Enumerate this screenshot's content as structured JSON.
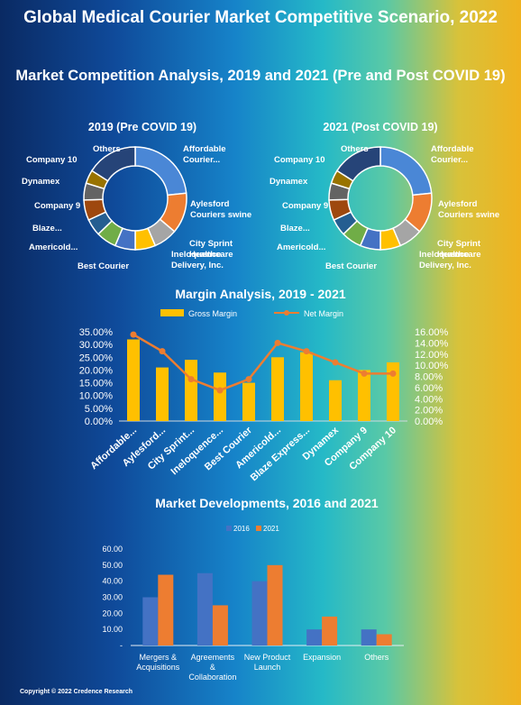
{
  "header": {
    "title": "Global Medical Courier Market Competitive Scenario, 2022",
    "subtitle": "Market Competition Analysis, 2019 and 2021 (Pre and Post COVID 19)"
  },
  "footer": {
    "copyright": "Copyright © 2022 Credence Research"
  },
  "colors": {
    "slice_palette": [
      "#4a87d6",
      "#ed7d31",
      "#a5a5a5",
      "#ffc000",
      "#4472c4",
      "#70ad47",
      "#255e91",
      "#9e480e",
      "#636363",
      "#997300",
      "#264478"
    ],
    "gross_margin": "#ffc000",
    "net_margin": "#ed7d31",
    "dev_2016": "#4472c4",
    "dev_2021": "#ed7d31"
  },
  "chart_data": [
    {
      "type": "pie",
      "variant": "donut",
      "title": "2019 (Pre COVID 19)",
      "labels": [
        "Affordable Courier...",
        "Aylesford Couriers swine",
        "City Sprint Healthcare",
        "Ineloquence Delivery, Inc.",
        "Best Courier",
        "Americold...",
        "Blaze...",
        "Company 9",
        "Dynamex",
        "Company 10",
        "Others"
      ],
      "values": [
        22,
        12,
        7,
        6,
        6,
        6,
        5,
        6,
        5,
        4,
        15
      ]
    },
    {
      "type": "pie",
      "variant": "donut",
      "title": "2021 (Post COVID 19)",
      "labels": [
        "Affordable Courier...",
        "Aylesford Couriers swine",
        "City Sprint Healthcare",
        "Ineloquence Delivery, Inc.",
        "Best Courier",
        "Americold...",
        "Blaze...",
        "Company 9",
        "Dynamex",
        "Company 10",
        "Others"
      ],
      "values": [
        22,
        12,
        7,
        6,
        6,
        6,
        5,
        6,
        5,
        4,
        15
      ]
    },
    {
      "type": "bar",
      "title": "Margin Analysis, 2019 - 2021",
      "legend": "top",
      "categories": [
        "Affordable...",
        "Aylesford...",
        "City Sprint...",
        "Ineloquence...",
        "Best Courier",
        "Americold...",
        "Blaze Express...",
        "Dynamex",
        "Company 9",
        "Company 10"
      ],
      "series": [
        {
          "name": "Gross Margin",
          "type": "bar",
          "axis": "left",
          "values": [
            32,
            21,
            24,
            19,
            15,
            25,
            27,
            16,
            20,
            23
          ]
        },
        {
          "name": "Net Margin",
          "type": "line",
          "axis": "right",
          "values": [
            15.5,
            12.5,
            7.5,
            5.5,
            7.5,
            14,
            12.5,
            10.5,
            8.5,
            8.5
          ]
        }
      ],
      "y_left": {
        "ylim": [
          0,
          35
        ],
        "ticks": [
          "0.00%",
          "5.00%",
          "10.00%",
          "15.00%",
          "20.00%",
          "25.00%",
          "30.00%",
          "35.00%"
        ]
      },
      "y_right": {
        "ylim": [
          0,
          16
        ],
        "ticks": [
          "0.00%",
          "2.00%",
          "4.00%",
          "6.00%",
          "8.00%",
          "10.00%",
          "12.00%",
          "14.00%",
          "16.00%"
        ]
      },
      "grid": false
    },
    {
      "type": "bar",
      "title": "Market Developments, 2016 and 2021",
      "legend": "top",
      "categories": [
        "Mergers & Acquisitions",
        "Agreements & Collaboration",
        "New Product Launch",
        "Expansion",
        "Others"
      ],
      "series": [
        {
          "name": "2016",
          "values": [
            30,
            45,
            40,
            10,
            10
          ]
        },
        {
          "name": "2021",
          "values": [
            44,
            25,
            50,
            18,
            7
          ]
        }
      ],
      "y_ticks": [
        "-",
        "10.00",
        "20.00",
        "30.00",
        "40.00",
        "50.00",
        "60.00"
      ],
      "ylim": [
        0,
        60
      ],
      "grid": false
    }
  ]
}
